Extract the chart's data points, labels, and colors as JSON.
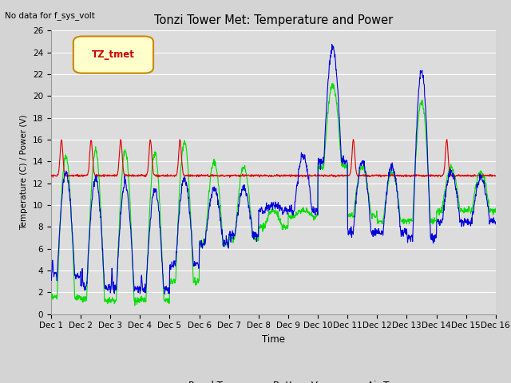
{
  "title": "Tonzi Tower Met: Temperature and Power",
  "top_left_text": "No data for f_sys_volt",
  "legend_label": "TZ_tmet",
  "xlabel": "Time",
  "ylabel": "Temperature (C) / Power (V)",
  "ylim": [
    0,
    26
  ],
  "panel_t_color": "#00dd00",
  "battery_v_color": "#dd0000",
  "air_t_color": "#0000dd",
  "legend_box_color": "#ffffcc",
  "legend_box_edge": "#cc8800",
  "x_ticks": [
    0,
    1,
    2,
    3,
    4,
    5,
    6,
    7,
    8,
    9,
    10,
    11,
    12,
    13,
    14,
    15
  ],
  "x_tick_labels": [
    "Dec 1",
    "Dec 2",
    "Dec 3",
    "Dec 4",
    "Dec 5",
    "Dec 6",
    "Dec 7",
    "Dec 8",
    "Dec 9",
    "Dec 10",
    "Dec 11",
    "Dec 12",
    "Dec 13",
    "Dec 14",
    "Dec 15",
    "Dec 16"
  ]
}
